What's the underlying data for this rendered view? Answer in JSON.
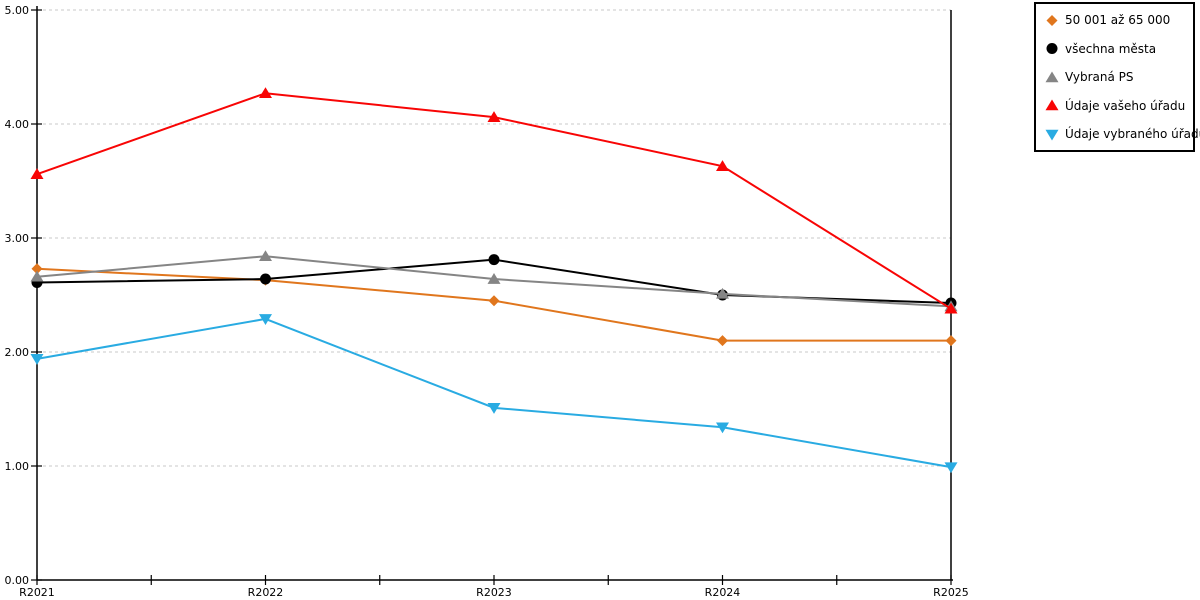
{
  "chart_data": {
    "type": "line",
    "title": "",
    "xlabel": "",
    "ylabel": "",
    "x_categories": [
      "R2021",
      "R2022",
      "R2023",
      "R2024",
      "R2025"
    ],
    "series": [
      {
        "name": "50 001 až 65 000",
        "color": "#E0761D",
        "marker": "diamond",
        "values": [
          2.73,
          2.63,
          2.45,
          2.1,
          2.1
        ]
      },
      {
        "name": "všechna města",
        "color": "#000000",
        "marker": "circle",
        "values": [
          2.61,
          2.64,
          2.81,
          2.5,
          2.43
        ]
      },
      {
        "name": "Vybraná PS",
        "color": "#858585",
        "marker": "triangle-up",
        "values": [
          2.66,
          2.84,
          2.64,
          2.51,
          2.4
        ]
      },
      {
        "name": "Údaje vašeho úřadu",
        "color": "#F80505",
        "marker": "triangle-up",
        "values": [
          3.56,
          4.27,
          4.06,
          3.63,
          2.38
        ]
      },
      {
        "name": "Údaje vybraného úřadu",
        "color": "#29ABE2",
        "marker": "triangle-down",
        "values": [
          1.94,
          2.29,
          1.51,
          1.34,
          0.99
        ]
      }
    ],
    "ylim": [
      0,
      5
    ],
    "ytick_step": 1,
    "ytick_labels": [
      "0.00",
      "1.00",
      "2.00",
      "3.00",
      "4.00",
      "5.00"
    ],
    "grid": "horizontal-dashed",
    "grid_color": "#C8C8C8",
    "axis_color": "#000000",
    "legend_position": "outside-top-right",
    "x_minor_ticks_between": 1
  }
}
